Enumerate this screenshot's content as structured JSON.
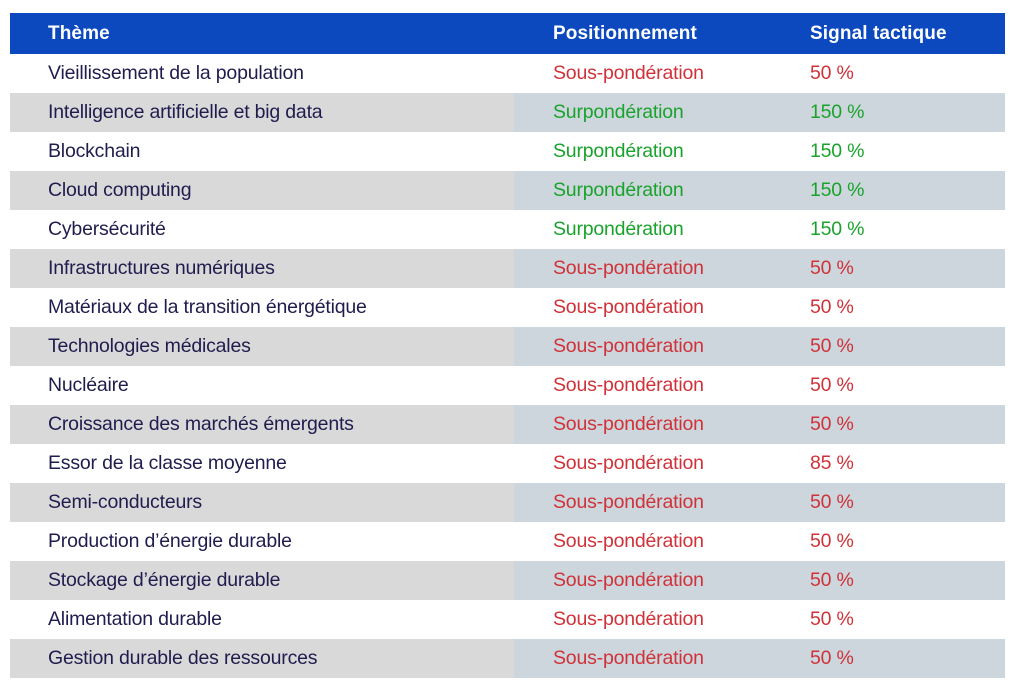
{
  "chart_data": {
    "type": "table",
    "title": "",
    "columns": [
      "Thème",
      "Positionnement",
      "Signal tactique"
    ],
    "rows": [
      {
        "theme": "Vieillissement de la population",
        "positioning": "Sous-pondération",
        "signal": "50 %",
        "status": "under"
      },
      {
        "theme": "Intelligence artificielle et big data",
        "positioning": "Surpondération",
        "signal": "150 %",
        "status": "over"
      },
      {
        "theme": "Blockchain",
        "positioning": "Surpondération",
        "signal": "150 %",
        "status": "over"
      },
      {
        "theme": "Cloud computing",
        "positioning": "Surpondération",
        "signal": "150 %",
        "status": "over"
      },
      {
        "theme": "Cybersécurité",
        "positioning": "Surpondération",
        "signal": "150 %",
        "status": "over"
      },
      {
        "theme": "Infrastructures numériques",
        "positioning": "Sous-pondération",
        "signal": "50 %",
        "status": "under"
      },
      {
        "theme": "Matériaux de la transition énergétique",
        "positioning": "Sous-pondération",
        "signal": "50 %",
        "status": "under"
      },
      {
        "theme": "Technologies médicales",
        "positioning": "Sous-pondération",
        "signal": "50 %",
        "status": "under"
      },
      {
        "theme": "Nucléaire",
        "positioning": "Sous-pondération",
        "signal": "50 %",
        "status": "under"
      },
      {
        "theme": "Croissance des marchés émergents",
        "positioning": "Sous-pondération",
        "signal": "50 %",
        "status": "under"
      },
      {
        "theme": "Essor de la classe moyenne",
        "positioning": "Sous-pondération",
        "signal": "85 %",
        "status": "under"
      },
      {
        "theme": "Semi-conducteurs",
        "positioning": "Sous-pondération",
        "signal": "50 %",
        "status": "under"
      },
      {
        "theme": "Production d’énergie durable",
        "positioning": "Sous-pondération",
        "signal": "50 %",
        "status": "under"
      },
      {
        "theme": "Stockage d’énergie durable",
        "positioning": "Sous-pondération",
        "signal": "50 %",
        "status": "under"
      },
      {
        "theme": "Alimentation durable",
        "positioning": "Sous-pondération",
        "signal": "50 %",
        "status": "under"
      },
      {
        "theme": "Gestion durable des ressources",
        "positioning": "Sous-pondération",
        "signal": "50 %",
        "status": "under"
      }
    ]
  },
  "colors": {
    "header_bg": "#0c49bf",
    "header_text": "#ffffff",
    "theme_text": "#201c4e",
    "under_color": "#cf3238",
    "over_color": "#1aa32c",
    "stripe_theme_bg": "#d9d9d9",
    "stripe_value_bg": "#cdd6dd",
    "row_bg": "#ffffff"
  }
}
